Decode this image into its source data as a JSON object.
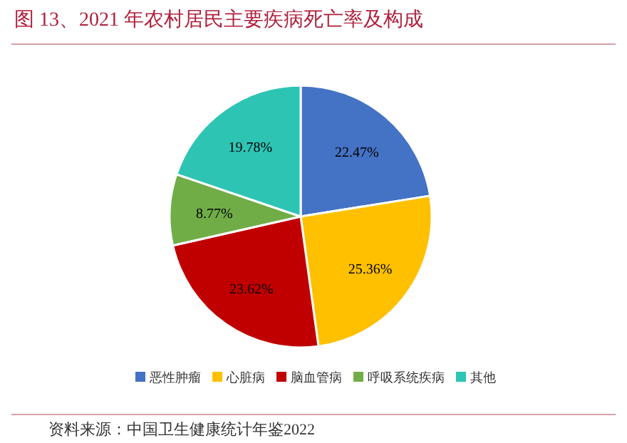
{
  "chart_data": {
    "type": "pie",
    "title": "图 13、2021 年农村居民主要疾病死亡率及构成",
    "categories": [
      "恶性肿瘤",
      "心脏病",
      "脑血管病",
      "呼吸系统疾病",
      "其他"
    ],
    "values": [
      22.47,
      25.36,
      23.62,
      8.77,
      19.78
    ],
    "value_labels": [
      "22.47%",
      "25.36%",
      "23.62%",
      "8.77%",
      "19.78%"
    ],
    "colors": [
      "#4472c4",
      "#ffc000",
      "#c00000",
      "#70ad47",
      "#2ec4b4"
    ],
    "legend": "bottom",
    "annotations": [
      "资料来源：中国卫生健康统计年鉴2022"
    ]
  }
}
